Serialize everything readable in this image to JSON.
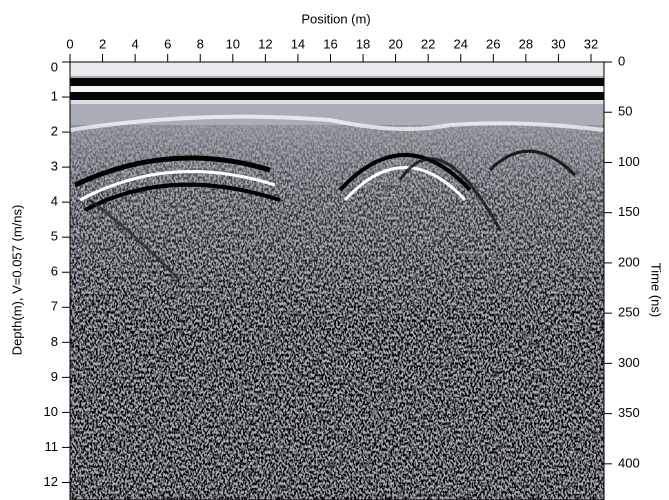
{
  "chart_data": {
    "type": "radargram",
    "x_label": "Position (m)",
    "y_label": "Depth(m), V=0.057 (m/ns)",
    "y2_label": "Time (ns)",
    "xlim": [
      0,
      32.8
    ],
    "xticks": [
      0,
      2,
      4,
      6,
      8,
      10,
      12,
      14,
      16,
      18,
      20,
      22,
      24,
      26,
      28,
      30,
      32
    ],
    "ylim": [
      0,
      12.5
    ],
    "yticks": [
      0,
      1,
      2,
      3,
      4,
      5,
      6,
      7,
      8,
      9,
      10,
      11,
      12
    ],
    "y2lim": [
      0,
      436
    ],
    "y2ticks": [
      0,
      50,
      100,
      150,
      200,
      250,
      300,
      350,
      400
    ]
  }
}
